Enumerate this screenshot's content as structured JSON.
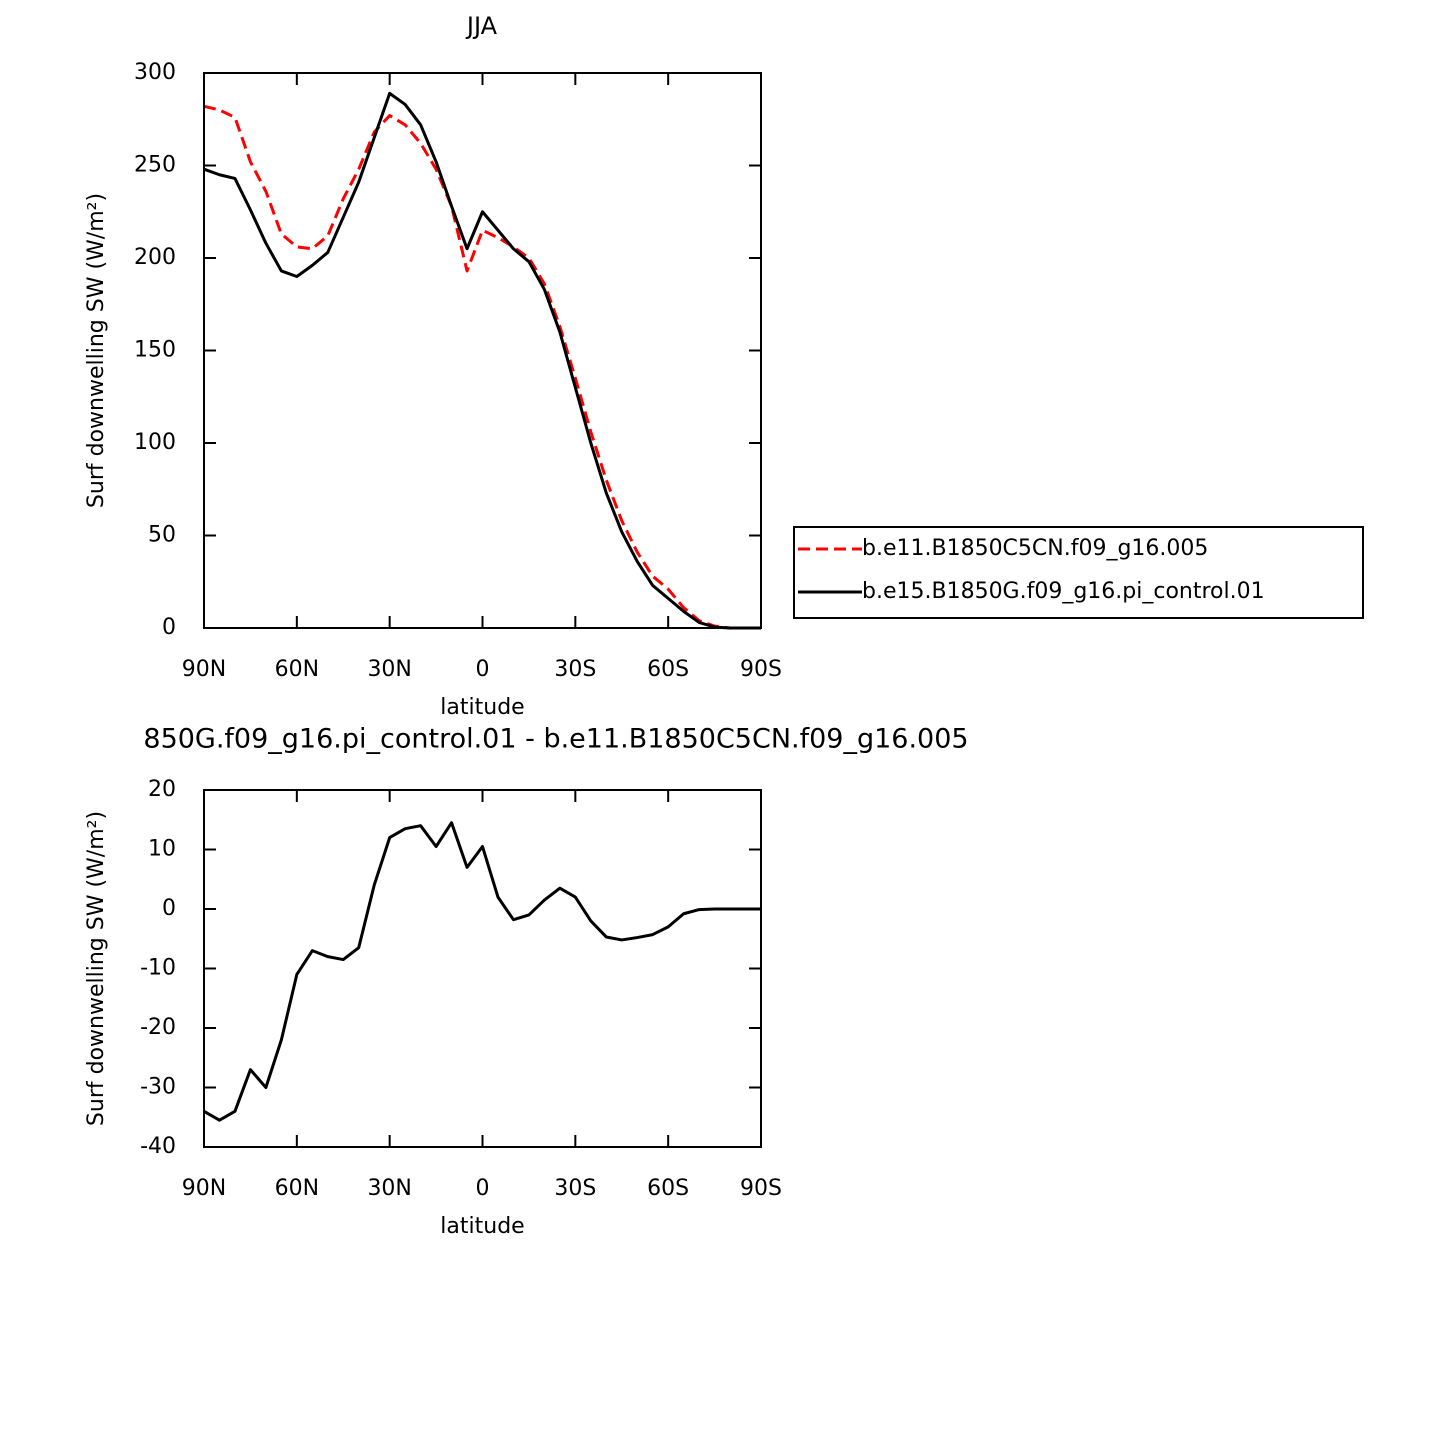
{
  "chart_data": [
    {
      "type": "line",
      "title": "JJA",
      "xlabel": "latitude",
      "ylabel": "Surf downwelling SW (W/m²)",
      "x": [
        90,
        85,
        80,
        75,
        70,
        65,
        60,
        55,
        50,
        45,
        40,
        35,
        30,
        25,
        20,
        15,
        10,
        5,
        0,
        -5,
        -10,
        -15,
        -20,
        -25,
        -30,
        -35,
        -40,
        -45,
        -50,
        -55,
        -60,
        -65,
        -70,
        -75,
        -80,
        -85,
        -90
      ],
      "series": [
        {
          "name": "b.e11.B1850C5CN.f09_g16.005",
          "color": "#ff0000",
          "linestyle": "dashed",
          "values": [
            282,
            280,
            276,
            252,
            236,
            213,
            206,
            205,
            212,
            232,
            248,
            268,
            277,
            272,
            262,
            248,
            228,
            193,
            215,
            211,
            206,
            200,
            186,
            163,
            135,
            106,
            80,
            58,
            41,
            28,
            21,
            11,
            4,
            1,
            0,
            0,
            0
          ]
        },
        {
          "name": "b.e15.B1850G.f09_g16.pi_control.01",
          "color": "#000000",
          "linestyle": "solid",
          "values": [
            248,
            245,
            243,
            226,
            208,
            193,
            190,
            196,
            203,
            222,
            241,
            265,
            289,
            283,
            272,
            252,
            228,
            205,
            225,
            215,
            205,
            198,
            183,
            160,
            130,
            100,
            73,
            52,
            36,
            23,
            16,
            9,
            3,
            0.5,
            0,
            0,
            0
          ]
        }
      ],
      "xlim": [
        90,
        -90
      ],
      "xticks": [
        {
          "value": 90,
          "label": "90N"
        },
        {
          "value": 60,
          "label": "60N"
        },
        {
          "value": 30,
          "label": "30N"
        },
        0,
        {
          "value": -30,
          "label": "30S"
        },
        {
          "value": -60,
          "label": "60S"
        },
        {
          "value": -90,
          "label": "90S"
        }
      ],
      "ylim": [
        0,
        300
      ],
      "yticks": [
        0,
        50,
        100,
        150,
        200,
        250,
        300
      ],
      "legend": "right"
    },
    {
      "type": "line",
      "title": "850G.f09_g16.pi_control.01 - b.e11.B1850C5CN.f09_g16.005",
      "xlabel": "latitude",
      "ylabel": "Surf downwelling SW (W/m²)",
      "x": [
        90,
        85,
        80,
        75,
        70,
        65,
        60,
        55,
        50,
        45,
        40,
        35,
        30,
        25,
        20,
        15,
        10,
        5,
        0,
        -5,
        -10,
        -15,
        -20,
        -25,
        -30,
        -35,
        -40,
        -45,
        -50,
        -55,
        -60,
        -65,
        -70,
        -75,
        -80,
        -85,
        -90
      ],
      "series": [
        {
          "color": "#000000",
          "linestyle": "solid",
          "values": [
            -34,
            -35.5,
            -34,
            -27,
            -30,
            -22,
            -11,
            -7,
            -8,
            -8.5,
            -6.5,
            4,
            12,
            13.5,
            14,
            10.5,
            14.5,
            7,
            10.5,
            2,
            -1.8,
            -1,
            1.5,
            3.5,
            2,
            -2,
            -4.7,
            -5.2,
            -4.8,
            -4.3,
            -3,
            -0.8,
            -0.1,
            0,
            0,
            0,
            0
          ]
        }
      ],
      "xlim": [
        90,
        -90
      ],
      "xticks": [
        {
          "value": 90,
          "label": "90N"
        },
        {
          "value": 60,
          "label": "60N"
        },
        {
          "value": 30,
          "label": "30N"
        },
        0,
        {
          "value": -30,
          "label": "30S"
        },
        {
          "value": -60,
          "label": "60S"
        },
        {
          "value": -90,
          "label": "90S"
        }
      ],
      "ylim": [
        -40,
        20
      ],
      "yticks": [
        -40,
        -30,
        -20,
        -10,
        0,
        10,
        20
      ]
    }
  ]
}
